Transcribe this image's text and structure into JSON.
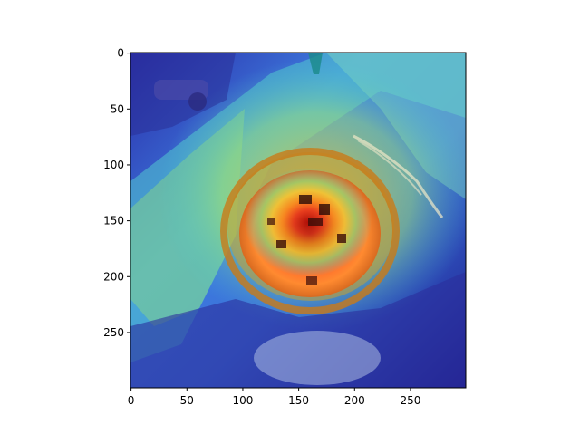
{
  "image": {
    "description_free": true,
    "pixel_extent": [
      300,
      300
    ],
    "overlay": "jet-colormap-heatmap",
    "frame_color": "#000000"
  },
  "axes": {
    "x_ticks": [
      {
        "value": 0,
        "label": "0"
      },
      {
        "value": 50,
        "label": "50"
      },
      {
        "value": 100,
        "label": "100"
      },
      {
        "value": 150,
        "label": "150"
      },
      {
        "value": 200,
        "label": "200"
      },
      {
        "value": 250,
        "label": "250"
      }
    ],
    "y_ticks": [
      {
        "value": 0,
        "label": "0"
      },
      {
        "value": 50,
        "label": "50"
      },
      {
        "value": 100,
        "label": "100"
      },
      {
        "value": 150,
        "label": "150"
      },
      {
        "value": 200,
        "label": "200"
      },
      {
        "value": 250,
        "label": "250"
      }
    ],
    "x_range": [
      0,
      300
    ],
    "y_range": [
      0,
      300
    ],
    "y_inverted": true
  }
}
